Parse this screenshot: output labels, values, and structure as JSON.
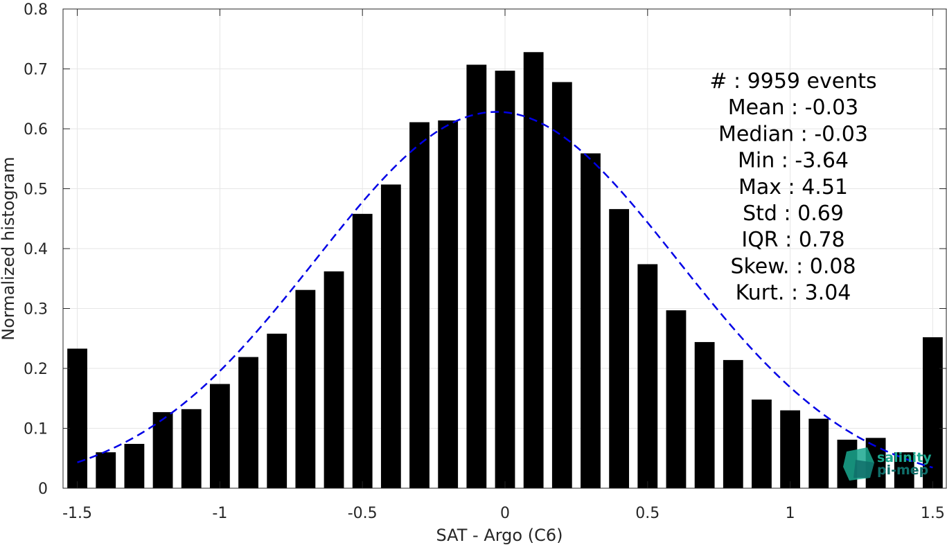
{
  "chart_data": {
    "type": "bar",
    "xlabel": "SAT - Argo (C6)",
    "ylabel": "Normalized histogram",
    "xlim": [
      -1.55,
      1.55
    ],
    "ylim": [
      0,
      0.8
    ],
    "grid": true,
    "x_tick_labels": [
      "-1.5",
      "-1",
      "-0.5",
      "0",
      "0.5",
      "1",
      "1.5"
    ],
    "x_ticks": [
      -1.5,
      -1,
      -0.5,
      0,
      0.5,
      1,
      1.5
    ],
    "y_tick_labels": [
      "0",
      "0.1",
      "0.2",
      "0.3",
      "0.4",
      "0.5",
      "0.6",
      "0.7",
      "0.8"
    ],
    "y_ticks": [
      0,
      0.1,
      0.2,
      0.3,
      0.4,
      0.5,
      0.6,
      0.7,
      0.8
    ],
    "bar_color": "#000000",
    "bar_width": 0.07,
    "bars": {
      "x": [
        -1.5,
        -1.4,
        -1.3,
        -1.2,
        -1.1,
        -1.0,
        -0.9,
        -0.8,
        -0.7,
        -0.6,
        -0.5,
        -0.4,
        -0.3,
        -0.2,
        -0.1,
        0.0,
        0.1,
        0.2,
        0.3,
        0.4,
        0.5,
        0.6,
        0.7,
        0.8,
        0.9,
        1.0,
        1.1,
        1.2,
        1.3,
        1.4,
        1.5
      ],
      "values": [
        0.233,
        0.06,
        0.074,
        0.127,
        0.132,
        0.174,
        0.219,
        0.258,
        0.331,
        0.362,
        0.458,
        0.507,
        0.611,
        0.614,
        0.707,
        0.697,
        0.728,
        0.678,
        0.559,
        0.466,
        0.374,
        0.297,
        0.244,
        0.214,
        0.148,
        0.13,
        0.116,
        0.081,
        0.084,
        0.06,
        0.252
      ]
    },
    "fit_curve": {
      "style": "dashed",
      "color": "#0000e6",
      "mean": -0.03,
      "std": 0.635,
      "x_range": [
        -1.5,
        1.5
      ]
    },
    "stats": [
      {
        "label": "#  : 9959 events"
      },
      {
        "label": "Mean : -0.03"
      },
      {
        "label": "Median : -0.03"
      },
      {
        "label": "Min : -3.64"
      },
      {
        "label": "Max : 4.51"
      },
      {
        "label": "Std : 0.69"
      },
      {
        "label": "IQR : 0.78"
      },
      {
        "label": "Skew. : 0.08"
      },
      {
        "label": "Kurt. : 3.04"
      }
    ]
  },
  "logo": {
    "line1": "salinity",
    "line2": "pi-mep",
    "color_primary": "#1aa88f",
    "color_secondary": "#0f6e6a"
  }
}
